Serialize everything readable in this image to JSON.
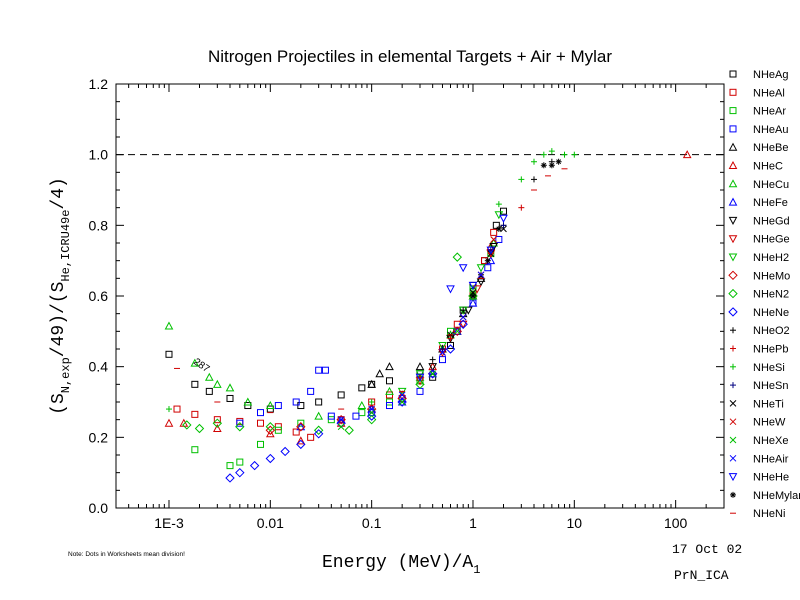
{
  "chart_data": {
    "type": "scatter",
    "title": "Nitrogen Projectiles in elemental Targets + Air + Mylar",
    "ylabel_main": "(S",
    "ylabel_sub1": "N,exp",
    "ylabel_mid": "/49)/(S",
    "ylabel_sub2": "He,ICRU49e",
    "ylabel_end": "/4)",
    "xlabel_main": "Energy (MeV)/A",
    "xlabel_sub": "1",
    "xscale": "log",
    "xlim": [
      0.0003,
      300
    ],
    "ylim": [
      0,
      1.2
    ],
    "x_ticks": [
      0.001,
      0.01,
      0.1,
      1,
      10,
      100
    ],
    "x_tick_labels": [
      "1E-3",
      "0.01",
      "0.1",
      "1",
      "10",
      "100"
    ],
    "y_ticks": [
      0,
      0.2,
      0.4,
      0.6,
      0.8,
      1.0,
      1.2
    ],
    "y_tick_labels": [
      "0.0",
      "0.2",
      "0.4",
      "0.6",
      "0.8",
      "1.0",
      "1.2"
    ],
    "reference_line": 1.0,
    "legend_position": "right, outside plot",
    "annotations": {
      "note": "Note: Dots in Worksheets mean division!",
      "date": "17 Oct 02",
      "code": "PrN_ICA",
      "label_in_plot": "287"
    },
    "series": [
      {
        "name": "NHeAg",
        "marker": "square",
        "color": "#000000",
        "points": [
          [
            0.001,
            0.435
          ],
          [
            0.0018,
            0.35
          ],
          [
            0.0025,
            0.33
          ],
          [
            0.004,
            0.31
          ],
          [
            0.006,
            0.29
          ],
          [
            0.01,
            0.28
          ],
          [
            0.02,
            0.29
          ],
          [
            0.03,
            0.3
          ],
          [
            0.05,
            0.32
          ],
          [
            0.08,
            0.34
          ],
          [
            0.1,
            0.35
          ],
          [
            0.15,
            0.36
          ],
          [
            0.3,
            0.38
          ],
          [
            0.4,
            0.37
          ],
          [
            0.6,
            0.46
          ],
          [
            0.8,
            0.56
          ],
          [
            1.0,
            0.63
          ],
          [
            1.3,
            0.7
          ],
          [
            1.7,
            0.8
          ],
          [
            2.0,
            0.84
          ]
        ]
      },
      {
        "name": "NHeAl",
        "marker": "square",
        "color": "#d00000",
        "points": [
          [
            0.0012,
            0.28
          ],
          [
            0.0018,
            0.265
          ],
          [
            0.003,
            0.25
          ],
          [
            0.005,
            0.245
          ],
          [
            0.008,
            0.24
          ],
          [
            0.012,
            0.23
          ],
          [
            0.018,
            0.215
          ],
          [
            0.025,
            0.2
          ],
          [
            0.05,
            0.25
          ],
          [
            0.1,
            0.3
          ],
          [
            0.15,
            0.32
          ],
          [
            0.3,
            0.36
          ],
          [
            0.5,
            0.45
          ],
          [
            0.7,
            0.52
          ],
          [
            1.0,
            0.6
          ],
          [
            1.3,
            0.7
          ],
          [
            1.6,
            0.78
          ]
        ]
      },
      {
        "name": "NHeAr",
        "marker": "square",
        "color": "#00c000",
        "points": [
          [
            0.0018,
            0.165
          ],
          [
            0.004,
            0.12
          ],
          [
            0.005,
            0.13
          ],
          [
            0.008,
            0.18
          ],
          [
            0.012,
            0.22
          ],
          [
            0.02,
            0.24
          ],
          [
            0.04,
            0.25
          ],
          [
            0.08,
            0.27
          ],
          [
            0.15,
            0.3
          ],
          [
            0.3,
            0.36
          ],
          [
            0.6,
            0.5
          ],
          [
            1.0,
            0.62
          ],
          [
            1.5,
            0.72
          ]
        ]
      },
      {
        "name": "NHeAu",
        "marker": "square",
        "color": "#0000ff",
        "points": [
          [
            0.005,
            0.24
          ],
          [
            0.008,
            0.27
          ],
          [
            0.012,
            0.29
          ],
          [
            0.018,
            0.3
          ],
          [
            0.025,
            0.33
          ],
          [
            0.03,
            0.39
          ],
          [
            0.035,
            0.39
          ],
          [
            0.04,
            0.26
          ],
          [
            0.07,
            0.26
          ],
          [
            0.1,
            0.27
          ],
          [
            0.15,
            0.29
          ],
          [
            0.2,
            0.31
          ],
          [
            0.3,
            0.33
          ],
          [
            0.5,
            0.42
          ],
          [
            0.7,
            0.5
          ],
          [
            1.0,
            0.58
          ],
          [
            1.4,
            0.68
          ],
          [
            1.8,
            0.76
          ]
        ]
      },
      {
        "name": "NHeBe",
        "marker": "triangle-up",
        "color": "#000000",
        "points": [
          [
            0.1,
            0.35
          ],
          [
            0.12,
            0.38
          ],
          [
            0.15,
            0.4
          ],
          [
            0.3,
            0.4
          ],
          [
            0.5,
            0.45
          ],
          [
            0.8,
            0.55
          ],
          [
            1.2,
            0.65
          ]
        ]
      },
      {
        "name": "NHeC",
        "marker": "triangle-up",
        "color": "#d00000",
        "points": [
          [
            0.001,
            0.24
          ],
          [
            0.0014,
            0.24
          ],
          [
            0.003,
            0.225
          ],
          [
            0.01,
            0.21
          ],
          [
            0.02,
            0.19
          ],
          [
            0.05,
            0.24
          ],
          [
            0.1,
            0.28
          ],
          [
            0.2,
            0.32
          ],
          [
            0.4,
            0.4
          ],
          [
            0.7,
            0.5
          ],
          [
            1.0,
            0.6
          ],
          [
            1.5,
            0.74
          ],
          [
            130,
            1.0
          ]
        ]
      },
      {
        "name": "NHeCu",
        "marker": "triangle-up",
        "color": "#00c000",
        "points": [
          [
            0.001,
            0.515
          ],
          [
            0.0018,
            0.41
          ],
          [
            0.0025,
            0.37
          ],
          [
            0.003,
            0.35
          ],
          [
            0.004,
            0.34
          ],
          [
            0.006,
            0.3
          ],
          [
            0.01,
            0.29
          ],
          [
            0.03,
            0.26
          ],
          [
            0.08,
            0.29
          ],
          [
            0.15,
            0.33
          ],
          [
            0.3,
            0.37
          ],
          [
            0.6,
            0.49
          ],
          [
            1.0,
            0.6
          ],
          [
            1.6,
            0.75
          ]
        ]
      },
      {
        "name": "NHeFe",
        "marker": "triangle-up",
        "color": "#0000ff",
        "points": [
          [
            0.02,
            0.23
          ],
          [
            0.05,
            0.25
          ],
          [
            0.1,
            0.28
          ],
          [
            0.2,
            0.3
          ],
          [
            0.4,
            0.38
          ],
          [
            0.7,
            0.5
          ],
          [
            1.0,
            0.58
          ],
          [
            1.5,
            0.7
          ]
        ]
      },
      {
        "name": "NHeGd",
        "marker": "triangle-down",
        "color": "#000000",
        "points": [
          [
            0.4,
            0.4
          ],
          [
            0.6,
            0.48
          ],
          [
            0.9,
            0.56
          ],
          [
            1.2,
            0.64
          ],
          [
            1.6,
            0.74
          ]
        ]
      },
      {
        "name": "NHeGe",
        "marker": "triangle-down",
        "color": "#d00000",
        "points": [
          [
            0.3,
            0.36
          ],
          [
            0.5,
            0.44
          ],
          [
            0.8,
            0.52
          ],
          [
            1.1,
            0.62
          ],
          [
            1.5,
            0.72
          ]
        ]
      },
      {
        "name": "NHeH2",
        "marker": "triangle-down",
        "color": "#00c000",
        "points": [
          [
            0.2,
            0.33
          ],
          [
            0.3,
            0.38
          ],
          [
            0.5,
            0.46
          ],
          [
            0.8,
            0.56
          ],
          [
            1.2,
            0.68
          ],
          [
            1.8,
            0.83
          ]
        ]
      },
      {
        "name": "NHeMo",
        "marker": "diamond",
        "color": "#d00000",
        "points": [
          [
            0.01,
            0.22
          ],
          [
            0.02,
            0.23
          ],
          [
            0.05,
            0.25
          ],
          [
            0.1,
            0.28
          ],
          [
            0.2,
            0.31
          ],
          [
            0.4,
            0.38
          ],
          [
            0.7,
            0.5
          ],
          [
            1.0,
            0.6
          ]
        ]
      },
      {
        "name": "NHeN2",
        "marker": "diamond",
        "color": "#00c000",
        "points": [
          [
            0.0015,
            0.235
          ],
          [
            0.002,
            0.225
          ],
          [
            0.003,
            0.24
          ],
          [
            0.005,
            0.23
          ],
          [
            0.01,
            0.23
          ],
          [
            0.03,
            0.22
          ],
          [
            0.06,
            0.22
          ],
          [
            0.1,
            0.25
          ],
          [
            0.3,
            0.35
          ],
          [
            0.7,
            0.71
          ],
          [
            1.0,
            0.6
          ]
        ]
      },
      {
        "name": "NHeNe",
        "marker": "diamond",
        "color": "#0000ff",
        "points": [
          [
            0.004,
            0.085
          ],
          [
            0.005,
            0.1
          ],
          [
            0.007,
            0.12
          ],
          [
            0.01,
            0.14
          ],
          [
            0.014,
            0.16
          ],
          [
            0.02,
            0.18
          ],
          [
            0.03,
            0.21
          ],
          [
            0.05,
            0.24
          ],
          [
            0.1,
            0.26
          ],
          [
            0.2,
            0.3
          ],
          [
            0.4,
            0.38
          ],
          [
            0.6,
            0.45
          ],
          [
            0.8,
            0.52
          ]
        ]
      },
      {
        "name": "NHeO2",
        "marker": "plus",
        "color": "#000000",
        "points": [
          [
            0.4,
            0.42
          ],
          [
            0.8,
            0.56
          ],
          [
            1.2,
            0.66
          ],
          [
            2.0,
            0.8
          ],
          [
            4.0,
            0.93
          ],
          [
            6.0,
            0.98
          ]
        ]
      },
      {
        "name": "NHePb",
        "marker": "plus",
        "color": "#d00000",
        "points": [
          [
            0.3,
            0.37
          ],
          [
            0.6,
            0.48
          ],
          [
            1.0,
            0.6
          ],
          [
            1.5,
            0.72
          ],
          [
            3.0,
            0.85
          ]
        ]
      },
      {
        "name": "NHeSi",
        "marker": "plus",
        "color": "#00c000",
        "points": [
          [
            0.001,
            0.28
          ],
          [
            0.1,
            0.3
          ],
          [
            0.5,
            0.45
          ],
          [
            1.0,
            0.62
          ],
          [
            1.8,
            0.86
          ],
          [
            3.0,
            0.93
          ],
          [
            4.0,
            0.98
          ],
          [
            5.0,
            1.0
          ],
          [
            6.0,
            1.01
          ],
          [
            8.0,
            1.0
          ],
          [
            10.0,
            1.0
          ]
        ]
      },
      {
        "name": "NHeSn",
        "marker": "plus",
        "color": "#000080",
        "points": [
          [
            0.5,
            0.45
          ],
          [
            1.0,
            0.6
          ],
          [
            1.5,
            0.73
          ],
          [
            2.0,
            0.8
          ]
        ]
      },
      {
        "name": "NHeTi",
        "marker": "cross",
        "color": "#000000",
        "points": [
          [
            0.6,
            0.49
          ],
          [
            1.0,
            0.61
          ],
          [
            1.5,
            0.72
          ],
          [
            2.0,
            0.79
          ]
        ]
      },
      {
        "name": "NHeW",
        "marker": "cross",
        "color": "#d00000",
        "points": [
          [
            0.5,
            0.44
          ],
          [
            0.8,
            0.54
          ],
          [
            1.2,
            0.66
          ],
          [
            1.6,
            0.76
          ]
        ]
      },
      {
        "name": "NHeXe",
        "marker": "cross",
        "color": "#00c000",
        "points": [
          [
            0.05,
            0.23
          ],
          [
            0.1,
            0.27
          ],
          [
            0.2,
            0.3
          ],
          [
            0.4,
            0.38
          ],
          [
            0.7,
            0.5
          ],
          [
            1.0,
            0.6
          ]
        ]
      },
      {
        "name": "NHeAir",
        "marker": "cross",
        "color": "#0000ff",
        "points": [
          [
            0.05,
            0.25
          ],
          [
            0.1,
            0.28
          ],
          [
            0.2,
            0.32
          ],
          [
            0.5,
            0.44
          ],
          [
            0.8,
            0.54
          ],
          [
            1.2,
            0.66
          ]
        ]
      },
      {
        "name": "NHeHe",
        "marker": "triangle-down",
        "color": "#0000ff",
        "points": [
          [
            0.3,
            0.37
          ],
          [
            0.6,
            0.62
          ],
          [
            0.8,
            0.68
          ],
          [
            1.0,
            0.63
          ],
          [
            1.5,
            0.73
          ],
          [
            2.0,
            0.82
          ]
        ]
      },
      {
        "name": "NHeMylar",
        "marker": "asterisk",
        "color": "#000000",
        "points": [
          [
            1.0,
            0.6
          ],
          [
            1.4,
            0.7
          ],
          [
            1.8,
            0.79
          ],
          [
            5.0,
            0.97
          ],
          [
            6.0,
            0.97
          ],
          [
            7.0,
            0.98
          ]
        ]
      },
      {
        "name": "NHeNi",
        "marker": "dash",
        "color": "#d00000",
        "points": [
          [
            0.0012,
            0.395
          ],
          [
            0.003,
            0.3
          ],
          [
            0.01,
            0.27
          ],
          [
            0.05,
            0.28
          ],
          [
            0.2,
            0.33
          ],
          [
            0.6,
            0.49
          ],
          [
            1.2,
            0.65
          ],
          [
            4.0,
            0.9
          ],
          [
            5.5,
            0.94
          ],
          [
            8.0,
            0.96
          ]
        ]
      }
    ]
  }
}
